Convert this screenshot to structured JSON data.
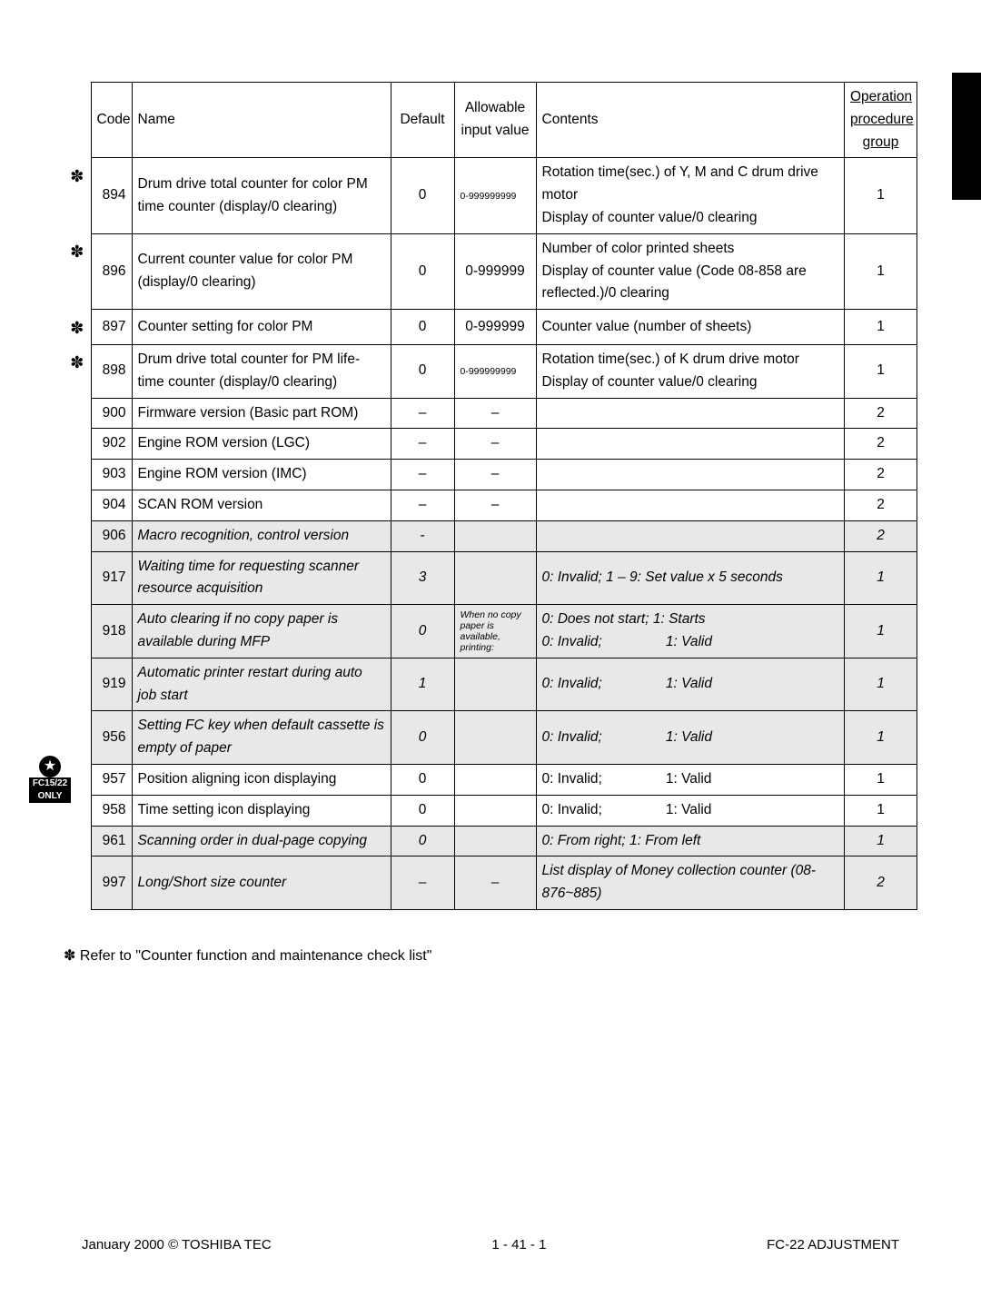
{
  "header": {
    "code": "Code",
    "name": "Name",
    "default": "Default",
    "allowable": "Allowable input value",
    "contents": "Contents",
    "operation": "Operation procedure group"
  },
  "rows": [
    {
      "mark": "✽",
      "grey": false,
      "code": "894",
      "name": "Drum drive total counter for color PM time counter (display/0 clearing)",
      "def": "0",
      "allow": "0-999999999",
      "allow_tiny": true,
      "cont": "Rotation time(sec.)  of Y, M and C drum drive motor\nDisplay of counter value/0 clearing",
      "op": "1"
    },
    {
      "mark": "✽",
      "grey": false,
      "code": "896",
      "name": "Current counter value for color PM (display/0 clearing)",
      "def": "0",
      "allow": "0-999999",
      "allow_tiny": false,
      "cont": "Number of color printed sheets\nDisplay of counter value (Code 08-858 are reflected.)/0 clearing",
      "op": "1"
    },
    {
      "mark": "✽",
      "grey": false,
      "code": "897",
      "name": "Counter setting for color PM",
      "def": "0",
      "allow": "0-999999",
      "allow_tiny": false,
      "cont": "Counter value (number of sheets)",
      "op": "1"
    },
    {
      "mark": "✽",
      "grey": false,
      "code": "898",
      "name": "Drum drive total counter for PM life-time counter (display/0 clearing)",
      "def": "0",
      "allow": "0-999999999",
      "allow_tiny": true,
      "cont": "Rotation time(sec.)  of K drum drive motor\nDisplay of counter value/0 clearing",
      "op": "1"
    },
    {
      "mark": "",
      "grey": false,
      "code": "900",
      "name": "Firmware version (Basic part ROM)",
      "def": "–",
      "allow": "–",
      "allow_tiny": false,
      "cont": "",
      "op": "2"
    },
    {
      "mark": "",
      "grey": false,
      "code": "902",
      "name": "Engine ROM version (LGC)",
      "def": "–",
      "allow": "–",
      "allow_tiny": false,
      "cont": "",
      "op": "2"
    },
    {
      "mark": "",
      "grey": false,
      "code": "903",
      "name": "Engine ROM version (IMC)",
      "def": "–",
      "allow": "–",
      "allow_tiny": false,
      "cont": "",
      "op": "2"
    },
    {
      "mark": "",
      "grey": false,
      "code": "904",
      "name": "SCAN ROM version",
      "def": "–",
      "allow": "–",
      "allow_tiny": false,
      "cont": "",
      "op": "2"
    },
    {
      "mark": "",
      "grey": true,
      "code": "906",
      "name": "Macro recognition, control version",
      "def": "-",
      "allow": "",
      "allow_tiny": false,
      "cont": "",
      "op": "2"
    },
    {
      "mark": "",
      "grey": true,
      "code": "917",
      "name": "Waiting time for requesting scanner resource acquisition",
      "def": "3",
      "allow": "",
      "allow_tiny": false,
      "cont": "0: Invalid; 1 – 9: Set value x 5 seconds",
      "op": "1"
    },
    {
      "mark": "",
      "grey": true,
      "code": "918",
      "name": "Auto clearing if no copy paper is available during MFP",
      "def": "0",
      "allow": "When no copy paper is available, printing:",
      "allow_tiny": true,
      "cont": "0: Does not start; 1: Starts\n0: Invalid;[[SP]]1: Valid",
      "op": "1"
    },
    {
      "mark": "",
      "grey": true,
      "code": "919",
      "name": "Automatic printer restart during auto job start",
      "def": "1",
      "allow": "",
      "allow_tiny": false,
      "cont": "0: Invalid;[[SP]]1: Valid",
      "op": "1"
    },
    {
      "mark": "",
      "grey": true,
      "code": "956",
      "name": "Setting FC key when default cassette is empty of paper",
      "def": "0",
      "allow": "",
      "allow_tiny": false,
      "cont": "0: Invalid;[[SP]]1: Valid",
      "op": "1"
    },
    {
      "mark": "",
      "grey": false,
      "code": "957",
      "name": "Position aligning icon displaying",
      "def": "0",
      "allow": "",
      "allow_tiny": false,
      "cont": "0: Invalid;[[SP]]1: Valid",
      "op": "1"
    },
    {
      "mark": "",
      "grey": false,
      "code": "958",
      "name": "Time setting icon displaying",
      "def": "0",
      "allow": "",
      "allow_tiny": false,
      "cont": "0: Invalid;[[SP]]1: Valid",
      "op": "1"
    },
    {
      "mark": "",
      "grey": true,
      "code": "961",
      "name": "Scanning order in dual-page copying",
      "def": "0",
      "allow": "",
      "allow_tiny": false,
      "cont": "0: From right;  1: From left",
      "op": "1"
    },
    {
      "mark": "",
      "grey": true,
      "code": "997",
      "name": "Long/Short size counter",
      "def": "–",
      "allow": "–",
      "allow_tiny": false,
      "cont": "List display of Money collection counter (08-876~885)",
      "op": "2"
    }
  ],
  "note": "✽ Refer to \"Counter function and maintenance check list\"",
  "footer": {
    "left": "January 2000  ©  TOSHIBA TEC",
    "center": "1 - 41 - 1",
    "right": "FC-22 ADJUSTMENT"
  },
  "badge": {
    "l1": "FC15/22",
    "l2": "ONLY",
    "star": "★"
  }
}
